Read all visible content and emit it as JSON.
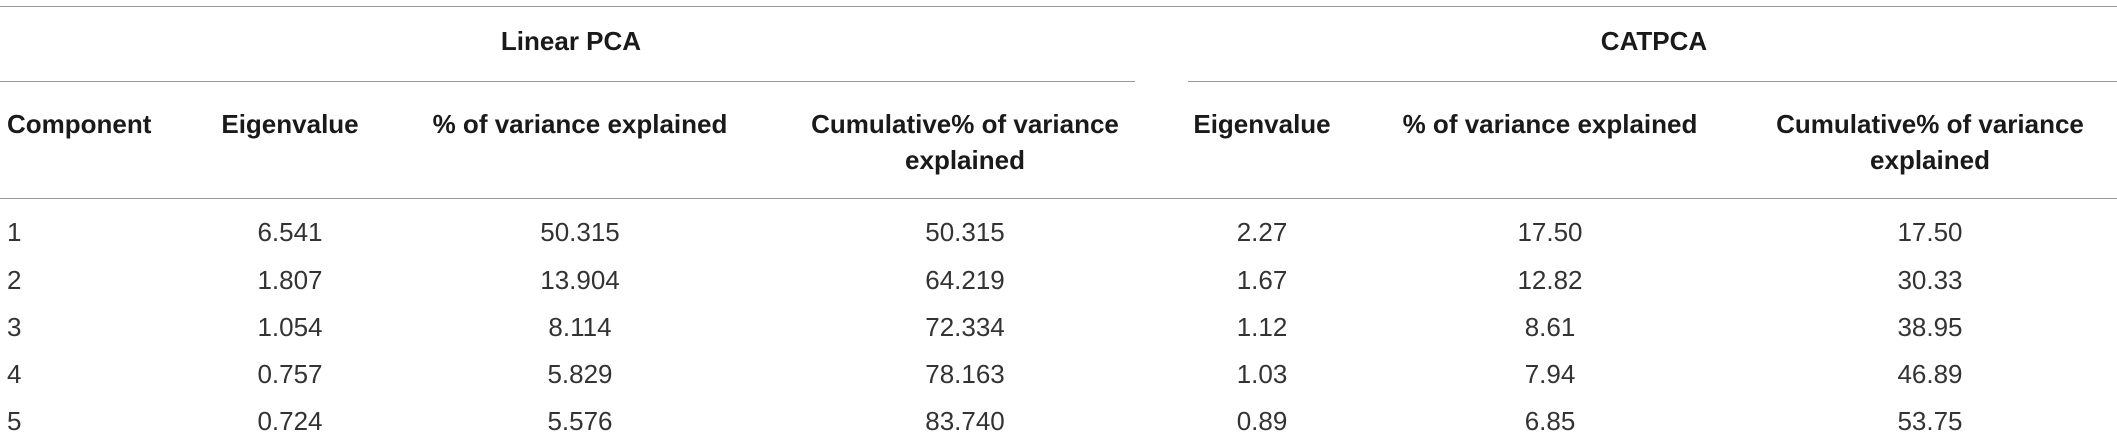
{
  "table": {
    "groups": [
      "Linear PCA",
      "CATPCA"
    ],
    "columns": [
      "Component",
      "Eigenvalue",
      "% of variance explained",
      "Cumulative% of variance explained",
      "Eigenvalue",
      "% of variance explained",
      "Cumulative% of variance explained"
    ],
    "rows": [
      [
        "1",
        "6.541",
        "50.315",
        "50.315",
        "2.27",
        "17.50",
        "17.50"
      ],
      [
        "2",
        "1.807",
        "13.904",
        "64.219",
        "1.67",
        "12.82",
        "30.33"
      ],
      [
        "3",
        "1.054",
        "8.114",
        "72.334",
        "1.12",
        "8.61",
        "38.95"
      ],
      [
        "4",
        "0.757",
        "5.829",
        "78.163",
        "1.03",
        "7.94",
        "46.89"
      ],
      [
        "5",
        "0.724",
        "5.576",
        "83.740",
        "0.89",
        "6.85",
        "53.75"
      ]
    ]
  }
}
